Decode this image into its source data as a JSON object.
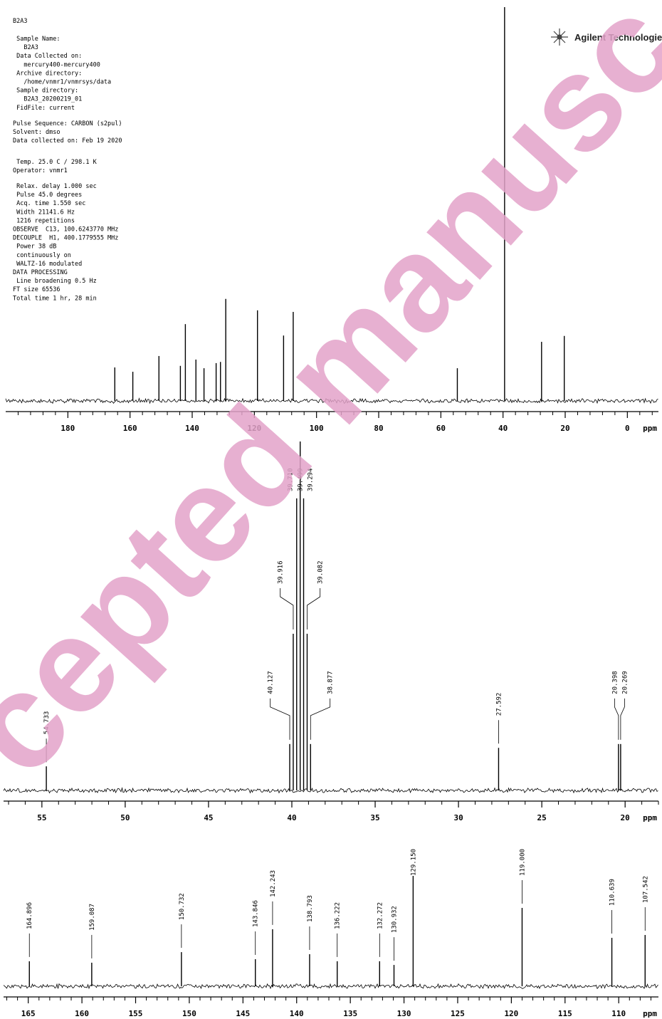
{
  "header": {
    "parameters": [
      [
        "B2A3"
      ],
      [
        " Sample Name:",
        "   B2A3",
        " Data Collected on:",
        "   mercury400-mercury400",
        " Archive directory:",
        "   /home/vnmr1/vnmrsys/data",
        " Sample directory:",
        "   B2A3_20200219_01",
        " FidFile: current"
      ],
      [
        "Pulse Sequence: CARBON (s2pul)",
        "Solvent: dmso",
        "Data collected on: Feb 19 2020"
      ],
      [
        " Temp. 25.0 C / 298.1 K",
        "Operator: vnmr1"
      ],
      [
        " Relax. delay 1.000 sec",
        " Pulse 45.0 degrees",
        " Acq. time 1.550 sec",
        " Width 21141.6 Hz",
        " 1216 repetitions",
        "OBSERVE  C13, 100.6243770 MHz",
        "DECOUPLE  H1, 400.1779555 MHz",
        " Power 38 dB",
        " continuously on",
        " WALTZ-16 modulated",
        "DATA PROCESSING",
        " Line broadening 0.5 Hz",
        "FT size 65536",
        "Total time 1 hr, 28 min"
      ]
    ],
    "logo": "Agilent Technologies",
    "watermark": "cepted manusc"
  },
  "chart_data": [
    {
      "type": "spectrum",
      "xlabel": "ppm",
      "color": "#000000",
      "xlim": [
        200,
        -10
      ],
      "xticks": [
        180,
        160,
        140,
        120,
        100,
        80,
        60,
        40,
        20,
        0
      ],
      "ylim": [
        0,
        100
      ],
      "x": [
        164.9,
        159.1,
        150.7,
        143.8,
        142.2,
        138.8,
        136.2,
        132.3,
        130.9,
        129.2,
        119.0,
        110.6,
        107.5,
        54.7,
        39.5,
        27.6,
        20.3
      ],
      "values": [
        8.5,
        7.4,
        11.4,
        8.9,
        19.5,
        10.5,
        8.3,
        9.6,
        9.9,
        25.9,
        23,
        16.6,
        22.6,
        8.3,
        100,
        15,
        16.5
      ]
    },
    {
      "type": "spectrum",
      "xlabel": "ppm",
      "color": "#000000",
      "xlim": [
        57.3,
        18
      ],
      "xticks": [
        55,
        50,
        45,
        40,
        35,
        30,
        25,
        20
      ],
      "ylim": [
        0,
        100
      ],
      "x": [
        54.733,
        40.127,
        39.916,
        39.71,
        39.499,
        39.294,
        39.082,
        38.877,
        27.592,
        20.398,
        20.269
      ],
      "x_labels": [
        "54.733",
        "40.127",
        "39.916",
        "39.710",
        "39.499",
        "39.294",
        "39.082",
        "38.877",
        "27.592",
        "20.398",
        "20.269"
      ],
      "values": [
        6.9,
        13.3,
        44.9,
        83.7,
        100,
        83.7,
        44.9,
        13.3,
        12.2,
        13.3,
        13.3
      ]
    },
    {
      "type": "spectrum",
      "xlabel": "ppm",
      "color": "#000000",
      "xlim": [
        167.3,
        106.3
      ],
      "xticks": [
        165,
        160,
        155,
        150,
        145,
        140,
        135,
        130,
        125,
        120,
        115,
        110
      ],
      "ylim": [
        0,
        100
      ],
      "x": [
        164.896,
        159.087,
        150.732,
        143.846,
        142.243,
        138.793,
        136.222,
        132.272,
        130.932,
        129.15,
        119.0,
        110.639,
        107.542
      ],
      "x_labels": [
        "164.896",
        "159.087",
        "150.732",
        "143.846",
        "142.243",
        "138.793",
        "136.222",
        "132.272",
        "130.932",
        "129.150",
        "119.000",
        "110.639",
        "107.542"
      ],
      "values": [
        15.6,
        14.7,
        21.3,
        16.9,
        35.6,
        20,
        15.6,
        15.6,
        13.3,
        68.9,
        48.9,
        30.2,
        32
      ]
    }
  ]
}
